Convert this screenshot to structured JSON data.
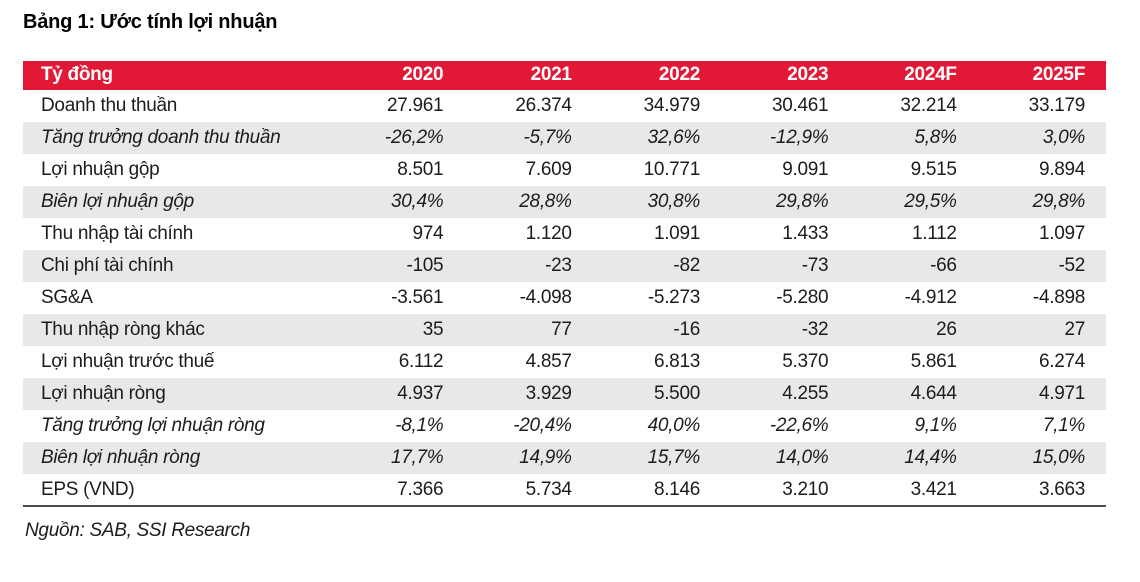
{
  "title": "Bảng 1: Ước tính lợi nhuận",
  "source": "Nguồn: SAB, SSI Research",
  "colors": {
    "header_bg": "#e11937",
    "header_text": "#ffffff",
    "stripe_bg": "#e8e8e8",
    "body_text": "#1c1c1c",
    "table_bottom_border": "#4d4d4d"
  },
  "chart_data": {
    "type": "table",
    "title": "Bảng 1: Ước tính lợi nhuận",
    "unit_label": "Tỷ đồng",
    "columns": [
      "2020",
      "2021",
      "2022",
      "2023",
      "2024F",
      "2025F"
    ],
    "rows": [
      {
        "label": "Doanh thu thuần",
        "italic": false,
        "values": [
          "27.961",
          "26.374",
          "34.979",
          "30.461",
          "32.214",
          "33.179"
        ]
      },
      {
        "label": "Tăng trưởng doanh thu thuần",
        "italic": true,
        "values": [
          "-26,2%",
          "-5,7%",
          "32,6%",
          "-12,9%",
          "5,8%",
          "3,0%"
        ]
      },
      {
        "label": "Lợi nhuận gộp",
        "italic": false,
        "values": [
          "8.501",
          "7.609",
          "10.771",
          "9.091",
          "9.515",
          "9.894"
        ]
      },
      {
        "label": "Biên lợi nhuận gộp",
        "italic": true,
        "values": [
          "30,4%",
          "28,8%",
          "30,8%",
          "29,8%",
          "29,5%",
          "29,8%"
        ]
      },
      {
        "label": "Thu nhập tài chính",
        "italic": false,
        "values": [
          "974",
          "1.120",
          "1.091",
          "1.433",
          "1.112",
          "1.097"
        ]
      },
      {
        "label": "Chi phí tài chính",
        "italic": false,
        "values": [
          "-105",
          "-23",
          "-82",
          "-73",
          "-66",
          "-52"
        ]
      },
      {
        "label": "SG&A",
        "italic": false,
        "values": [
          "-3.561",
          "-4.098",
          "-5.273",
          "-5.280",
          "-4.912",
          "-4.898"
        ]
      },
      {
        "label": "Thu nhập ròng khác",
        "italic": false,
        "values": [
          "35",
          "77",
          "-16",
          "-32",
          "26",
          "27"
        ]
      },
      {
        "label": "Lợi nhuận trước thuế",
        "italic": false,
        "values": [
          "6.112",
          "4.857",
          "6.813",
          "5.370",
          "5.861",
          "6.274"
        ]
      },
      {
        "label": "Lợi nhuận ròng",
        "italic": false,
        "values": [
          "4.937",
          "3.929",
          "5.500",
          "4.255",
          "4.644",
          "4.971"
        ]
      },
      {
        "label": "Tăng trưởng lợi nhuận ròng",
        "italic": true,
        "values": [
          "-8,1%",
          "-20,4%",
          "40,0%",
          "-22,6%",
          "9,1%",
          "7,1%"
        ]
      },
      {
        "label": "Biên lợi nhuận ròng",
        "italic": true,
        "values": [
          "17,7%",
          "14,9%",
          "15,7%",
          "14,0%",
          "14,4%",
          "15,0%"
        ]
      },
      {
        "label": "EPS (VND)",
        "italic": false,
        "values": [
          "7.366",
          "5.734",
          "8.146",
          "3.210",
          "3.421",
          "3.663"
        ]
      }
    ]
  }
}
